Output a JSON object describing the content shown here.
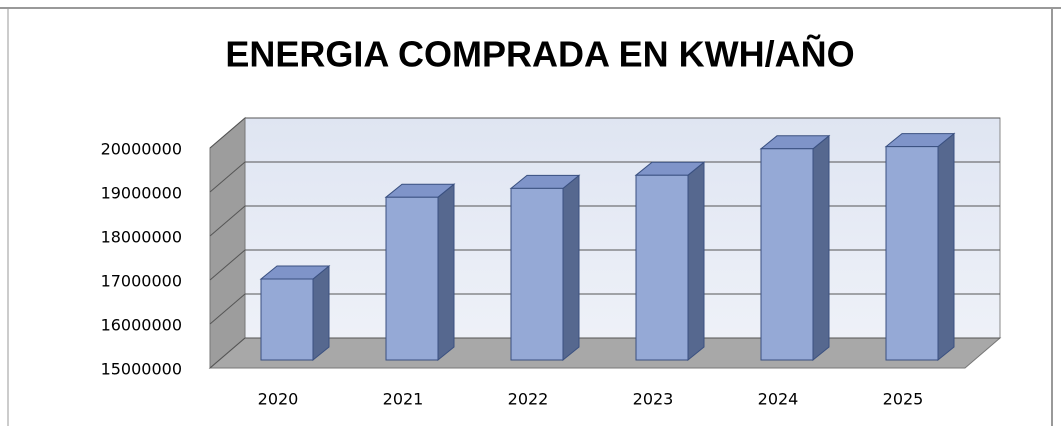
{
  "chart_data": {
    "type": "bar3d",
    "title": "ENERGIA COMPRADA EN KWH/AÑO",
    "categories": [
      "2020",
      "2021",
      "2022",
      "2023",
      "2024",
      "2025"
    ],
    "values": [
      16840000,
      18700000,
      18900000,
      19200000,
      19800000,
      19850000
    ],
    "color": "#95a9d6",
    "ylim": [
      15000000,
      20000000
    ],
    "yticks": [
      15000000,
      16000000,
      17000000,
      18000000,
      19000000,
      20000000
    ],
    "grid": true
  }
}
